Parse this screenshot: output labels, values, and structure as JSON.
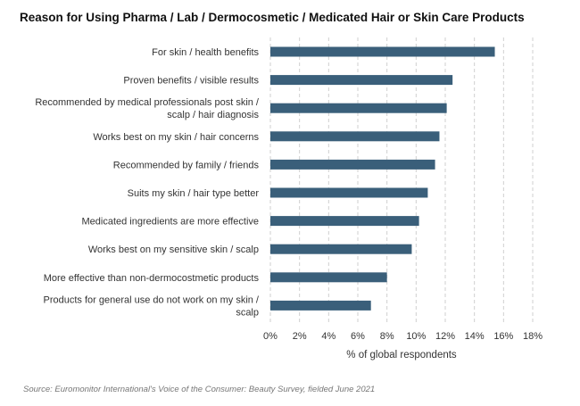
{
  "chart_data": {
    "type": "bar",
    "orientation": "horizontal",
    "title": "Reason for Using Pharma / Lab / Dermocosmetic / Medicated Hair or Skin Care Products",
    "xlabel": "% of global respondents",
    "ylabel": "",
    "xlim": [
      0,
      18
    ],
    "x_ticks": [
      "0%",
      "2%",
      "4%",
      "6%",
      "8%",
      "10%",
      "12%",
      "14%",
      "16%",
      "18%"
    ],
    "grid": "vertical dashed",
    "bar_color": "#3a5f7a",
    "categories": [
      [
        "For skin / health benefits"
      ],
      [
        "Proven benefits / visible results"
      ],
      [
        "Recommended by medical professionals post skin /",
        "scalp / hair diagnosis"
      ],
      [
        "Works best on my skin / hair concerns"
      ],
      [
        "Recommended by family / friends"
      ],
      [
        "Suits my skin / hair type better"
      ],
      [
        "Medicated ingredients are more effective"
      ],
      [
        "Works best on my sensitive skin / scalp"
      ],
      [
        "More effective than non-dermocostmetic products"
      ],
      [
        "Products for general use do not work on my skin /",
        "scalp"
      ]
    ],
    "values": [
      15.4,
      12.5,
      12.1,
      11.6,
      11.3,
      10.8,
      10.2,
      9.7,
      8.0,
      6.9
    ]
  },
  "source": "Source: Euromonitor International's Voice of the Consumer: Beauty Survey, fielded June 2021"
}
